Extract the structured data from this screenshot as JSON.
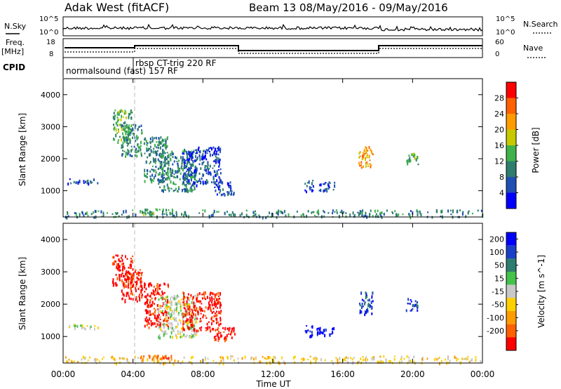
{
  "header": {
    "title_left": "Adak West (fitACF)",
    "title_right": "Beam 13 08/May/2016 - 09/May/2016"
  },
  "aux": {
    "nsky_label": "N.Sky",
    "nsky_ticks": [
      "10^5",
      "10^0"
    ],
    "nsearch_label": "N.Search",
    "nsearch_ticks": [
      "10^5",
      "10^0"
    ],
    "freq_label": "Freq.",
    "freq_unit": "[MHz]",
    "freq_ticks": [
      "18",
      "8"
    ],
    "nave_label": "Nave",
    "nave_ticks": [
      "60",
      "0"
    ],
    "cpid_label": "CPID",
    "cpid_programs": [
      {
        "name": "normalsound (fast) 157 RF",
        "start_hour": 0
      },
      {
        "name": "rbsp CT-trig 220 RF",
        "start_hour": 4
      }
    ]
  },
  "colors": {
    "power": [
      "#0000ff",
      "#1f4fb3",
      "#2e7d6e",
      "#3fb24a",
      "#c8c800",
      "#ff9b00",
      "#ff6000",
      "#ff0000"
    ],
    "velocity": [
      "#0000ff",
      "#1c3fc9",
      "#2e7d6e",
      "#44c24a",
      "#c8c8c8",
      "#ffd000",
      "#ff9b00",
      "#ff6000",
      "#ff0000"
    ]
  },
  "chart_data": [
    {
      "type": "heatmap",
      "title": "",
      "xlabel": "Time UT",
      "ylabel": "Slant Range [km]",
      "xlim": [
        0,
        24
      ],
      "ylim": [
        180,
        4500
      ],
      "x_ticks": [
        "00:00",
        "04:00",
        "08:00",
        "12:00",
        "16:00",
        "20:00",
        "00:00"
      ],
      "y_ticks": [
        "1000",
        "2000",
        "3000",
        "4000"
      ],
      "colorbar_label": "Power [dB]",
      "colorbar_ticks": [
        "4",
        "8",
        "12",
        "16",
        "20",
        "24",
        "28"
      ],
      "regions": [
        {
          "t0": 0.2,
          "t1": 2.0,
          "r0": 1250,
          "r1": 1400,
          "level": 1
        },
        {
          "t0": 2.8,
          "t1": 4.0,
          "r0": 2550,
          "r1": 3550,
          "level": 3
        },
        {
          "t0": 3.3,
          "t1": 4.5,
          "r0": 2100,
          "r1": 3100,
          "level": 2
        },
        {
          "t0": 4.6,
          "t1": 6.0,
          "r0": 1300,
          "r1": 2700,
          "level": 2
        },
        {
          "t0": 5.4,
          "t1": 7.6,
          "r0": 1000,
          "r1": 2300,
          "level": 2
        },
        {
          "t0": 6.8,
          "t1": 9.0,
          "r0": 1200,
          "r1": 2400,
          "level": 1
        },
        {
          "t0": 8.6,
          "t1": 9.8,
          "r0": 900,
          "r1": 1300,
          "level": 1
        },
        {
          "t0": 13.8,
          "t1": 14.3,
          "r0": 1000,
          "r1": 1350,
          "level": 1
        },
        {
          "t0": 14.5,
          "t1": 15.5,
          "r0": 1000,
          "r1": 1300,
          "level": 1
        },
        {
          "t0": 16.9,
          "t1": 17.7,
          "r0": 1700,
          "r1": 2400,
          "level": 5
        },
        {
          "t0": 19.6,
          "t1": 20.3,
          "r0": 1800,
          "r1": 2200,
          "level": 3
        },
        {
          "t0": 0.1,
          "t1": 24.0,
          "r0": 200,
          "r1": 420,
          "level": 2
        },
        {
          "t0": 4.3,
          "t1": 6.3,
          "r0": 300,
          "r1": 450,
          "level": 3
        }
      ]
    },
    {
      "type": "heatmap",
      "title": "",
      "xlabel": "Time UT",
      "ylabel": "Slant Range [km]",
      "xlim": [
        0,
        24
      ],
      "ylim": [
        180,
        4500
      ],
      "x_ticks": [
        "00:00",
        "04:00",
        "08:00",
        "12:00",
        "16:00",
        "20:00",
        "00:00"
      ],
      "y_ticks": [
        "1000",
        "2000",
        "3000",
        "4000"
      ],
      "colorbar_label": "Velocity [m s^-1]",
      "colorbar_ticks": [
        "200",
        "100",
        "50",
        "15",
        "-15",
        "-50",
        "-100",
        "-200"
      ],
      "regions": [
        {
          "t0": 0.2,
          "t1": 2.0,
          "r0": 1250,
          "r1": 1400,
          "level": 4
        },
        {
          "t0": 2.8,
          "t1": 4.0,
          "r0": 2550,
          "r1": 3550,
          "level": 8
        },
        {
          "t0": 3.3,
          "t1": 4.5,
          "r0": 2100,
          "r1": 3100,
          "level": 8
        },
        {
          "t0": 4.6,
          "t1": 6.0,
          "r0": 1300,
          "r1": 2700,
          "level": 8
        },
        {
          "t0": 5.4,
          "t1": 7.6,
          "r0": 1000,
          "r1": 2300,
          "level": 4
        },
        {
          "t0": 6.8,
          "t1": 9.0,
          "r0": 1200,
          "r1": 2400,
          "level": 8
        },
        {
          "t0": 8.6,
          "t1": 9.8,
          "r0": 900,
          "r1": 1300,
          "level": 8
        },
        {
          "t0": 13.8,
          "t1": 14.3,
          "r0": 1000,
          "r1": 1350,
          "level": 0
        },
        {
          "t0": 14.5,
          "t1": 15.5,
          "r0": 1000,
          "r1": 1300,
          "level": 0
        },
        {
          "t0": 16.9,
          "t1": 17.7,
          "r0": 1700,
          "r1": 2400,
          "level": 1
        },
        {
          "t0": 19.6,
          "t1": 20.3,
          "r0": 1800,
          "r1": 2200,
          "level": 1
        },
        {
          "t0": 0.1,
          "t1": 24.0,
          "r0": 200,
          "r1": 420,
          "level": 5
        },
        {
          "t0": 4.3,
          "t1": 6.3,
          "r0": 300,
          "r1": 450,
          "level": 7
        }
      ]
    }
  ]
}
